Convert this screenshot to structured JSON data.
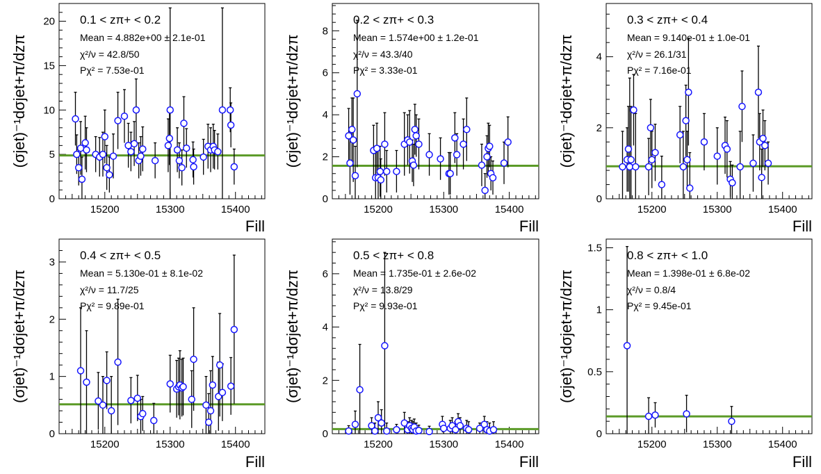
{
  "x_label": "Fill",
  "y_label": "(σjet)⁻¹dσjet+π/dzπ",
  "chart_data": [
    {
      "type": "scatter",
      "title": "0.1 < zπ+ < 0.2",
      "mean_text": "Mean = 4.882e+00 ± 2.1e-01",
      "chi2_text": "χ²/ν = 42.8/50",
      "prob_text": "Pχ² = 7.53e-01",
      "mean_value": 4.882,
      "xlim": [
        15130,
        15445
      ],
      "ylim": [
        0,
        22
      ],
      "xticks": [
        15200,
        15300,
        15400
      ],
      "yticks": [
        0,
        5,
        10,
        15,
        20
      ],
      "points": [
        [
          15155,
          9.0,
          3.0
        ],
        [
          15157,
          5.0,
          2.2
        ],
        [
          15160,
          3.5,
          2.0
        ],
        [
          15163,
          5.7,
          3.0
        ],
        [
          15165,
          2.2,
          2.5
        ],
        [
          15170,
          6.3,
          3.0
        ],
        [
          15172,
          5.5,
          2.5
        ],
        [
          15186,
          5.0,
          2.0
        ],
        [
          15192,
          4.7,
          2.2
        ],
        [
          15197,
          5.0,
          2.5
        ],
        [
          15200,
          7.0,
          3.0
        ],
        [
          15203,
          3.5,
          2.5
        ],
        [
          15207,
          2.7,
          2.0
        ],
        [
          15213,
          4.8,
          2.5
        ],
        [
          15220,
          8.8,
          3.2
        ],
        [
          15230,
          9.3,
          3.0
        ],
        [
          15236,
          6.0,
          2.5
        ],
        [
          15240,
          5.3,
          2.2
        ],
        [
          15245,
          6.2,
          2.5
        ],
        [
          15248,
          10.0,
          3.5
        ],
        [
          15252,
          4.3,
          2.0
        ],
        [
          15255,
          4.8,
          2.2
        ],
        [
          15258,
          5.6,
          2.5
        ],
        [
          15277,
          4.3,
          2.0
        ],
        [
          15297,
          6.0,
          3.0
        ],
        [
          15299,
          6.8,
          3.0
        ],
        [
          15300,
          10.0,
          11.5
        ],
        [
          15311,
          5.5,
          2.5
        ],
        [
          15314,
          4.3,
          2.0
        ],
        [
          15318,
          3.5,
          2.0
        ],
        [
          15321,
          8.5,
          3.0
        ],
        [
          15325,
          5.7,
          2.2
        ],
        [
          15335,
          4.4,
          2.0
        ],
        [
          15336,
          3.6,
          2.0
        ],
        [
          15351,
          4.7,
          2.0
        ],
        [
          15358,
          5.9,
          2.5
        ],
        [
          15362,
          5.5,
          2.5
        ],
        [
          15366,
          5.9,
          2.5
        ],
        [
          15368,
          5.5,
          2.2
        ],
        [
          15373,
          5.3,
          2.0
        ],
        [
          15380,
          10.0,
          11.5
        ],
        [
          15392,
          10.0,
          2.5
        ],
        [
          15393,
          8.3,
          2.5
        ],
        [
          15398,
          3.6,
          2.0
        ]
      ]
    },
    {
      "type": "scatter",
      "title": "0.2 < zπ+ < 0.3",
      "mean_text": "Mean = 1.574e+00 ± 1.2e-01",
      "chi2_text": "χ²/ν = 43.3/40",
      "prob_text": "Pχ² = 3.33e-01",
      "mean_value": 1.574,
      "xlim": [
        15130,
        15445
      ],
      "ylim": [
        0,
        9.3
      ],
      "xticks": [
        15200,
        15300,
        15400
      ],
      "yticks": [
        0,
        2,
        4,
        6,
        8
      ],
      "points": [
        [
          15155,
          3.0,
          1.3
        ],
        [
          15157,
          1.7,
          1.5
        ],
        [
          15160,
          3.3,
          1.5
        ],
        [
          15162,
          2.8,
          2.0
        ],
        [
          15165,
          1.1,
          1.4
        ],
        [
          15168,
          5.0,
          3.5
        ],
        [
          15193,
          2.3,
          1.2
        ],
        [
          15196,
          1.0,
          1.2
        ],
        [
          15198,
          2.4,
          1.2
        ],
        [
          15200,
          1.0,
          1.5
        ],
        [
          15203,
          1.3,
          1.2
        ],
        [
          15204,
          0.9,
          1.0
        ],
        [
          15210,
          2.6,
          1.5
        ],
        [
          15213,
          1.3,
          1.0
        ],
        [
          15228,
          1.3,
          1.0
        ],
        [
          15240,
          2.6,
          1.5
        ],
        [
          15245,
          2.8,
          1.2
        ],
        [
          15248,
          2.7,
          1.5
        ],
        [
          15252,
          1.8,
          1.0
        ],
        [
          15254,
          1.6,
          1.0
        ],
        [
          15256,
          3.3,
          1.2
        ],
        [
          15258,
          3.0,
          1.0
        ],
        [
          15262,
          2.6,
          1.2
        ],
        [
          15278,
          2.1,
          1.0
        ],
        [
          15295,
          1.9,
          1.0
        ],
        [
          15308,
          1.2,
          1.0
        ],
        [
          15310,
          1.2,
          1.0
        ],
        [
          15317,
          2.9,
          1.2
        ],
        [
          15320,
          2.1,
          1.0
        ],
        [
          15330,
          2.6,
          1.2
        ],
        [
          15335,
          3.3,
          1.5
        ],
        [
          15358,
          1.6,
          1.0
        ],
        [
          15363,
          0.4,
          0.8
        ],
        [
          15366,
          2.0,
          1.0
        ],
        [
          15368,
          2.4,
          1.2
        ],
        [
          15370,
          2.5,
          1.0
        ],
        [
          15372,
          1.2,
          0.8
        ],
        [
          15375,
          1.0,
          0.8
        ],
        [
          15392,
          1.7,
          1.0
        ],
        [
          15398,
          2.7,
          1.2
        ]
      ]
    },
    {
      "type": "scatter",
      "title": "0.3 < zπ+ < 0.4",
      "mean_text": "Mean = 9.140e-01 ± 1.0e-01",
      "chi2_text": "χ²/ν = 26.1/31",
      "prob_text": "Pχ² = 7.16e-01",
      "mean_value": 0.914,
      "xlim": [
        15130,
        15445
      ],
      "ylim": [
        0,
        5.5
      ],
      "xticks": [
        15200,
        15300,
        15400
      ],
      "yticks": [
        0,
        2,
        4
      ],
      "points": [
        [
          15155,
          0.9,
          1.0
        ],
        [
          15162,
          1.1,
          0.9
        ],
        [
          15164,
          1.4,
          1.2
        ],
        [
          15166,
          0.9,
          2.5
        ],
        [
          15168,
          1.1,
          1.5
        ],
        [
          15172,
          2.5,
          1.0
        ],
        [
          15175,
          0.9,
          1.5
        ],
        [
          15195,
          0.9,
          0.8
        ],
        [
          15198,
          2.0,
          0.8
        ],
        [
          15200,
          1.1,
          0.8
        ],
        [
          15205,
          1.3,
          0.8
        ],
        [
          15215,
          0.4,
          0.8
        ],
        [
          15243,
          1.8,
          0.8
        ],
        [
          15248,
          0.9,
          1.0
        ],
        [
          15252,
          2.2,
          1.0
        ],
        [
          15254,
          1.1,
          0.8
        ],
        [
          15256,
          3.0,
          1.5
        ],
        [
          15258,
          0.3,
          1.0
        ],
        [
          15280,
          1.6,
          0.8
        ],
        [
          15300,
          1.2,
          0.8
        ],
        [
          15312,
          1.5,
          0.8
        ],
        [
          15315,
          1.4,
          0.8
        ],
        [
          15320,
          0.55,
          0.5
        ],
        [
          15323,
          0.45,
          0.5
        ],
        [
          15335,
          0.9,
          1.0
        ],
        [
          15338,
          2.6,
          1.0
        ],
        [
          15355,
          1.0,
          0.8
        ],
        [
          15363,
          3.0,
          1.3
        ],
        [
          15365,
          1.6,
          0.8
        ],
        [
          15368,
          0.6,
          0.8
        ],
        [
          15370,
          1.7,
          0.8
        ],
        [
          15373,
          1.5,
          0.7
        ],
        [
          15378,
          1.0,
          0.6
        ]
      ]
    },
    {
      "type": "scatter",
      "title": "0.4 < zπ+ < 0.5",
      "mean_text": "Mean = 5.130e-01 ± 8.1e-02",
      "chi2_text": "χ²/ν = 11.7/25",
      "prob_text": "Pχ² = 9.89e-01",
      "mean_value": 0.513,
      "xlim": [
        15130,
        15445
      ],
      "ylim": [
        0,
        3.4
      ],
      "xticks": [
        15200,
        15300,
        15400
      ],
      "yticks": [
        0,
        1,
        2,
        3
      ],
      "points": [
        [
          15163,
          1.1,
          1.1
        ],
        [
          15172,
          0.9,
          0.9
        ],
        [
          15190,
          0.57,
          0.5
        ],
        [
          15197,
          0.5,
          0.5
        ],
        [
          15203,
          0.93,
          0.5
        ],
        [
          15210,
          0.4,
          0.6
        ],
        [
          15220,
          1.25,
          1.1
        ],
        [
          15240,
          0.58,
          0.4
        ],
        [
          15250,
          0.62,
          0.4
        ],
        [
          15255,
          0.3,
          0.3
        ],
        [
          15258,
          0.35,
          0.3
        ],
        [
          15275,
          0.23,
          0.3
        ],
        [
          15300,
          0.87,
          0.5
        ],
        [
          15310,
          0.78,
          0.5
        ],
        [
          15313,
          0.82,
          0.5
        ],
        [
          15315,
          0.85,
          0.6
        ],
        [
          15318,
          0.8,
          0.5
        ],
        [
          15320,
          0.82,
          0.5
        ],
        [
          15333,
          0.6,
          0.5
        ],
        [
          15336,
          1.3,
          0.9
        ],
        [
          15355,
          0.5,
          0.5
        ],
        [
          15359,
          0.2,
          0.5
        ],
        [
          15362,
          0.4,
          0.7
        ],
        [
          15365,
          0.85,
          0.5
        ],
        [
          15374,
          0.65,
          0.6
        ],
        [
          15376,
          1.2,
          0.9
        ],
        [
          15380,
          0.72,
          0.5
        ],
        [
          15393,
          0.83,
          0.5
        ],
        [
          15398,
          1.82,
          1.3
        ]
      ]
    },
    {
      "type": "scatter",
      "title": "0.5 < zπ+ < 0.8",
      "mean_text": "Mean = 1.735e-01 ± 2.6e-02",
      "chi2_text": "χ²/ν = 13.8/29",
      "prob_text": "Pχ² = 9.93e-01",
      "mean_value": 0.1735,
      "xlim": [
        15130,
        15445
      ],
      "ylim": [
        0,
        7.3
      ],
      "xticks": [
        15200,
        15300,
        15400
      ],
      "yticks": [
        0,
        2,
        4,
        6
      ],
      "points": [
        [
          15155,
          0.1,
          0.2
        ],
        [
          15165,
          0.35,
          0.5
        ],
        [
          15172,
          1.65,
          1.7
        ],
        [
          15190,
          0.3,
          0.3
        ],
        [
          15195,
          0.1,
          0.3
        ],
        [
          15200,
          0.6,
          0.6
        ],
        [
          15205,
          0.4,
          0.5
        ],
        [
          15210,
          3.3,
          3.5
        ],
        [
          15213,
          0.1,
          0.3
        ],
        [
          15228,
          0.15,
          0.2
        ],
        [
          15240,
          0.4,
          0.4
        ],
        [
          15245,
          0.15,
          0.3
        ],
        [
          15248,
          0.3,
          0.3
        ],
        [
          15251,
          0.2,
          0.3
        ],
        [
          15253,
          0.15,
          0.3
        ],
        [
          15255,
          0.25,
          0.3
        ],
        [
          15258,
          0.1,
          0.3
        ],
        [
          15262,
          0.12,
          0.2
        ],
        [
          15278,
          0.08,
          0.2
        ],
        [
          15298,
          0.35,
          0.3
        ],
        [
          15300,
          0.2,
          0.2
        ],
        [
          15310,
          0.2,
          0.3
        ],
        [
          15313,
          0.3,
          0.3
        ],
        [
          15318,
          0.15,
          0.3
        ],
        [
          15322,
          0.45,
          0.3
        ],
        [
          15325,
          0.3,
          0.3
        ],
        [
          15335,
          0.2,
          0.3
        ],
        [
          15338,
          0.15,
          0.3
        ],
        [
          15355,
          0.2,
          0.2
        ],
        [
          15362,
          0.35,
          0.3
        ],
        [
          15366,
          0.15,
          0.3
        ],
        [
          15370,
          0.1,
          0.3
        ],
        [
          15376,
          0.15,
          0.3
        ]
      ]
    },
    {
      "type": "scatter",
      "title": "0.8 < zπ+ < 1.0",
      "mean_text": "Mean = 1.398e-01 ± 6.8e-02",
      "chi2_text": "χ²/ν = 0.8/4",
      "prob_text": "Pχ² = 9.45e-01",
      "mean_value": 0.1398,
      "xlim": [
        15130,
        15445
      ],
      "ylim": [
        0,
        1.57
      ],
      "xticks": [
        15200,
        15300,
        15400
      ],
      "yticks": [
        0,
        0.5,
        1,
        1.5
      ],
      "points": [
        [
          15162,
          0.71,
          0.8
        ],
        [
          15195,
          0.14,
          0.15
        ],
        [
          15205,
          0.15,
          0.1
        ],
        [
          15253,
          0.16,
          0.15
        ],
        [
          15322,
          0.1,
          0.12
        ]
      ]
    }
  ]
}
